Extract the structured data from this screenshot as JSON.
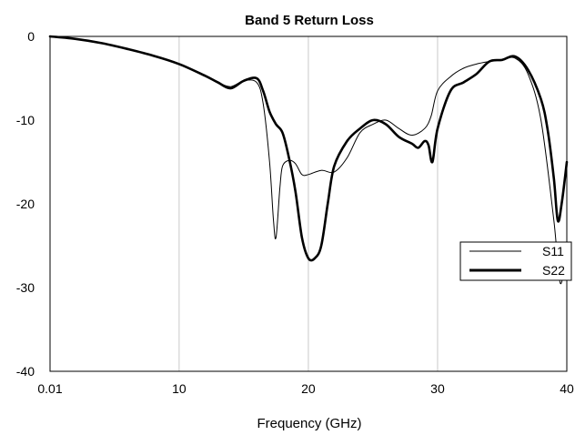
{
  "chart_data": {
    "type": "line",
    "title": "Band 5 Return Loss",
    "xlabel": "Frequency (GHz)",
    "ylabel": "",
    "xlim": [
      0.01,
      40
    ],
    "ylim": [
      -40,
      0
    ],
    "x_ticks": [
      0.01,
      10,
      20,
      30,
      40
    ],
    "x_tick_labels": [
      "0.01",
      "10",
      "20",
      "30",
      "40"
    ],
    "y_ticks": [
      0,
      -10,
      -20,
      -30,
      -40
    ],
    "y_tick_labels": [
      "0",
      "-10",
      "-20",
      "-30",
      "-40"
    ],
    "grid": "vertical",
    "legend_position": "right",
    "series": [
      {
        "name": "S11",
        "stroke_color": "#000000",
        "line_weight": "thin",
        "x": [
          0.01,
          2,
          4,
          6,
          8,
          10,
          12,
          13,
          14,
          15,
          16,
          16.5,
          17,
          17.3,
          17.5,
          17.8,
          18,
          18.5,
          19,
          19.5,
          20,
          21,
          22,
          23,
          24,
          25,
          26,
          27,
          28,
          29,
          29.5,
          30,
          31,
          32,
          33,
          34,
          35,
          36,
          37,
          38,
          39,
          39.5,
          40
        ],
        "y": [
          0,
          -0.3,
          -0.8,
          -1.5,
          -2.3,
          -3.3,
          -4.7,
          -5.5,
          -6.0,
          -5.3,
          -5.5,
          -8.0,
          -15.0,
          -22.0,
          -24.0,
          -18.0,
          -15.5,
          -14.8,
          -15.2,
          -16.5,
          -16.5,
          -16.0,
          -16.2,
          -14.5,
          -11.5,
          -10.5,
          -10.0,
          -11.0,
          -11.8,
          -11.0,
          -9.5,
          -6.5,
          -4.8,
          -3.8,
          -3.3,
          -3.0,
          -2.8,
          -2.6,
          -4.5,
          -10.0,
          -22.0,
          -29.5,
          -25.0
        ]
      },
      {
        "name": "S22",
        "stroke_color": "#000000",
        "line_weight": "thick",
        "x": [
          0.01,
          2,
          4,
          6,
          8,
          10,
          12,
          13,
          14,
          15,
          16,
          16.5,
          17,
          17.5,
          18,
          18.5,
          19,
          19.5,
          20,
          20.5,
          21,
          21.5,
          22,
          23,
          24,
          25,
          26,
          27,
          28,
          28.5,
          29,
          29.3,
          29.6,
          30,
          31,
          32,
          33,
          34,
          35,
          36,
          37,
          38,
          38.5,
          39,
          39.3,
          39.6,
          40
        ],
        "y": [
          0,
          -0.3,
          -0.8,
          -1.5,
          -2.3,
          -3.3,
          -4.7,
          -5.5,
          -6.2,
          -5.3,
          -5.0,
          -6.5,
          -9.0,
          -10.5,
          -11.5,
          -14.5,
          -18.5,
          -24.0,
          -26.5,
          -26.5,
          -25.0,
          -20.0,
          -15.5,
          -12.5,
          -11.0,
          -10.0,
          -10.5,
          -12.0,
          -12.8,
          -13.3,
          -12.5,
          -13.0,
          -15.0,
          -11.0,
          -6.5,
          -5.5,
          -4.5,
          -3.0,
          -2.8,
          -2.4,
          -4.0,
          -7.5,
          -11.0,
          -17.0,
          -22.0,
          -20.0,
          -15.0
        ]
      }
    ]
  }
}
